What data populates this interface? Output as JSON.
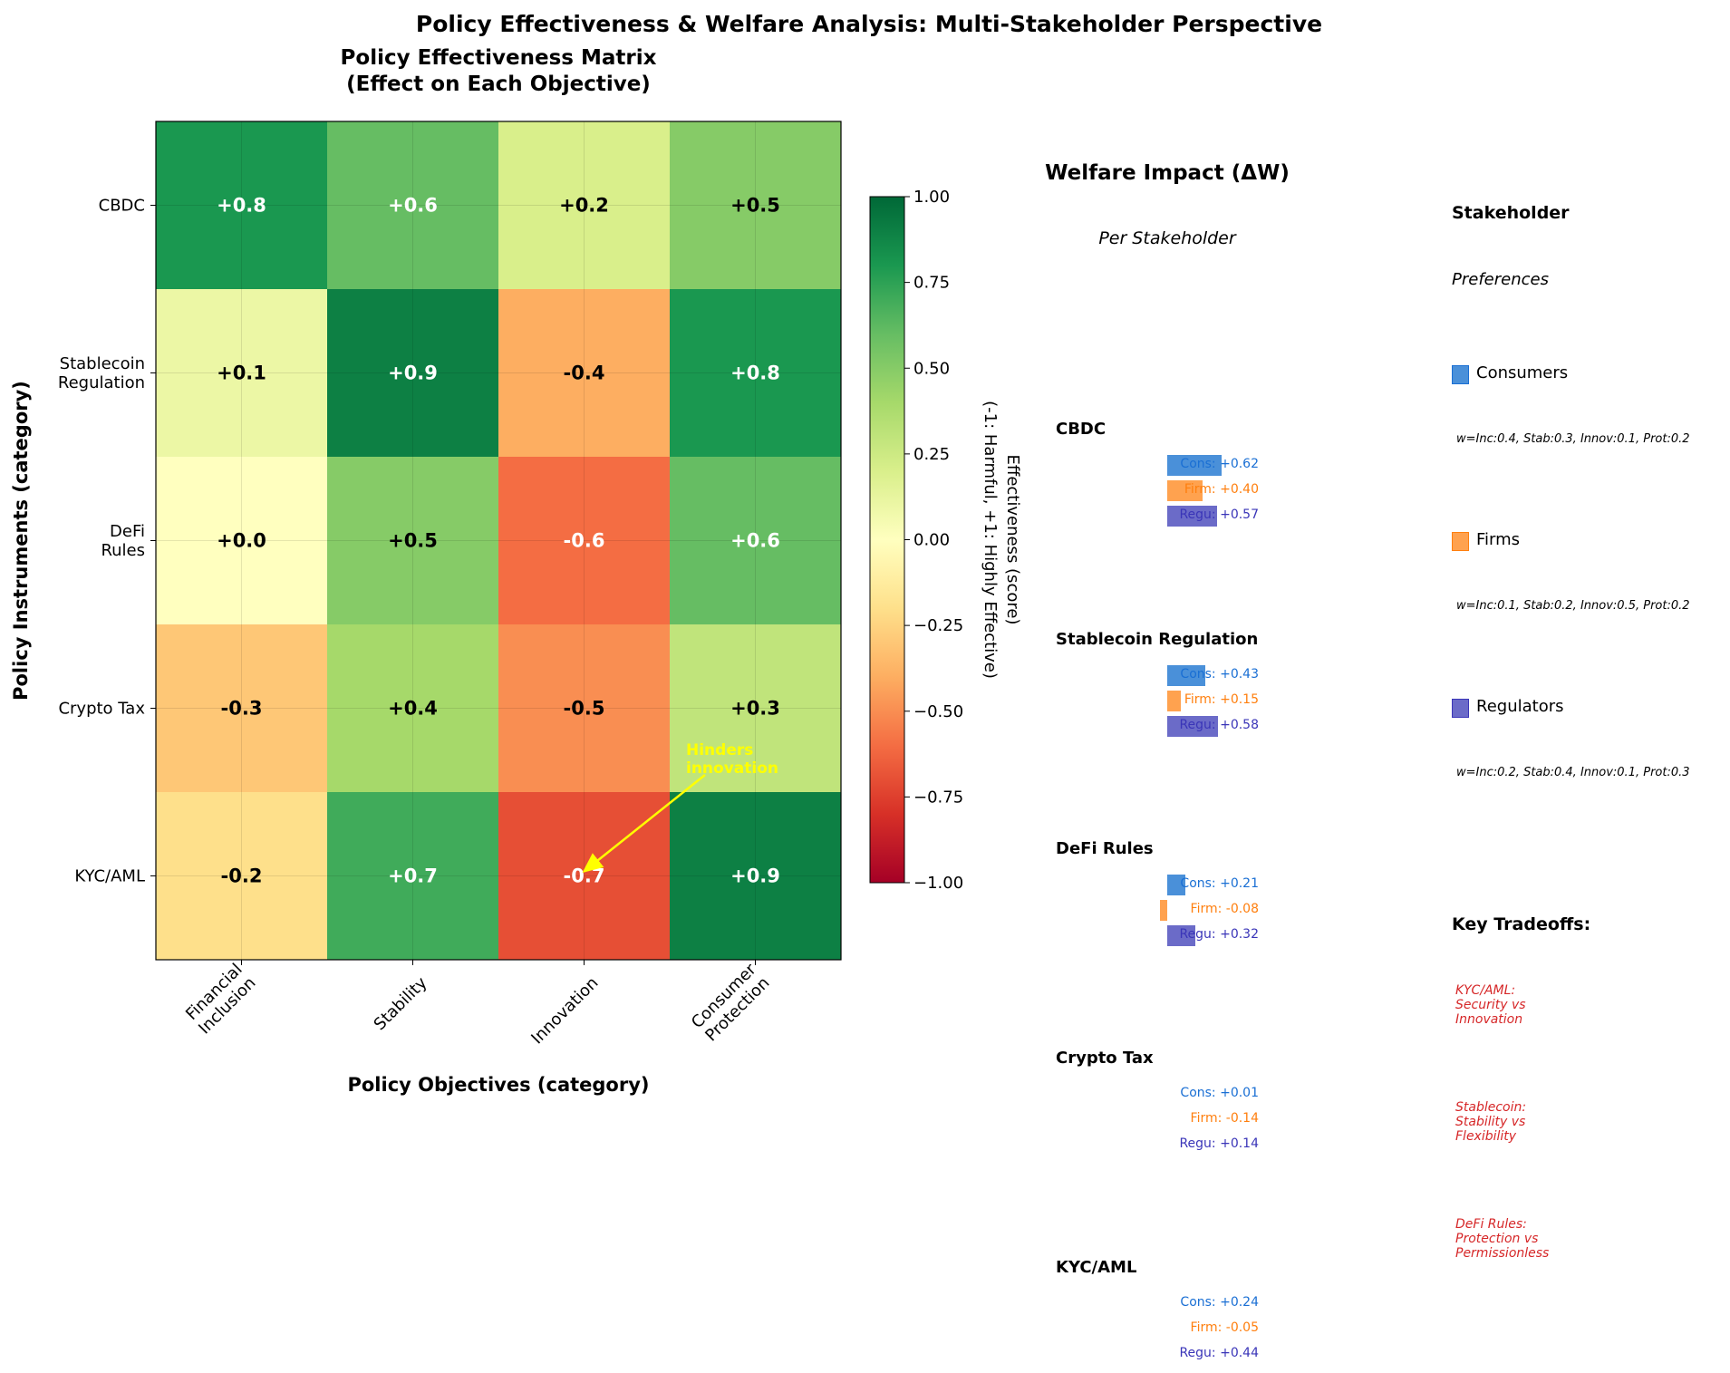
{
  "suptitle": "Policy Effectiveness & Welfare Analysis: Multi-Stakeholder Perspective",
  "chart_data": [
    {
      "type": "heatmap",
      "title": "Policy Effectiveness Matrix\n(Effect on Each Objective)",
      "title_lines": [
        "Policy Effectiveness Matrix",
        "(Effect on Each Objective)"
      ],
      "xlabel": "Policy Objectives (category)",
      "ylabel": "Policy Instruments (category)",
      "x_categories": [
        "Financial\nInclusion",
        "Stability",
        "Innovation",
        "Consumer\nProtection"
      ],
      "y_categories": [
        "CBDC",
        "Stablecoin\nRegulation",
        "DeFi\nRules",
        "Crypto Tax",
        "KYC/AML"
      ],
      "values": [
        [
          0.8,
          0.6,
          0.2,
          0.5
        ],
        [
          0.1,
          0.9,
          -0.4,
          0.8
        ],
        [
          0.0,
          0.5,
          -0.6,
          0.6
        ],
        [
          -0.3,
          0.4,
          -0.5,
          0.3
        ],
        [
          -0.2,
          0.7,
          -0.7,
          0.9
        ]
      ],
      "value_labels": [
        [
          "+0.8",
          "+0.6",
          "+0.2",
          "+0.5"
        ],
        [
          "+0.1",
          "+0.9",
          "-0.4",
          "+0.8"
        ],
        [
          "+0.0",
          "+0.5",
          "-0.6",
          "+0.6"
        ],
        [
          "-0.3",
          "+0.4",
          "-0.5",
          "+0.3"
        ],
        [
          "-0.2",
          "+0.7",
          "-0.7",
          "+0.9"
        ]
      ],
      "colormap": "RdYlGn",
      "vlim": [
        -1,
        1
      ],
      "colorbar": {
        "label_lines": [
          "Effectiveness (score)",
          "(-1: Harmful, +1: Highly Effective)"
        ],
        "ticks": [
          "1.00",
          "0.75",
          "0.50",
          "0.25",
          "0.00",
          "−0.25",
          "−0.50",
          "−0.75",
          "−1.00"
        ],
        "tick_values": [
          1,
          0.75,
          0.5,
          0.25,
          0,
          -0.25,
          -0.5,
          -0.75,
          -1
        ]
      },
      "grid": true,
      "annotation": {
        "text_lines": [
          "Hinders",
          "innovation"
        ],
        "target_row": 4,
        "target_col": 2,
        "color": "#ffff00"
      }
    },
    {
      "type": "bar",
      "title": "Welfare Impact (ΔW)",
      "subtitle": "Per Stakeholder",
      "stakeholder_colors": {
        "Cons": "#4a90d9",
        "Firm": "#ffa24f",
        "Regu": "#6b6bc8"
      },
      "text_colors": {
        "Cons": "#1a6fd4",
        "Firm": "#ff7f0e",
        "Regu": "#3a35b8"
      },
      "policies": [
        {
          "name": "CBDC",
          "bars_visible": true,
          "rows": [
            {
              "key": "Cons",
              "label": "Cons: +0.62",
              "value": 0.62
            },
            {
              "key": "Firm",
              "label": "Firm: +0.40",
              "value": 0.4
            },
            {
              "key": "Regu",
              "label": "Regu: +0.57",
              "value": 0.57
            }
          ]
        },
        {
          "name": "Stablecoin Regulation",
          "bars_visible": true,
          "rows": [
            {
              "key": "Cons",
              "label": "Cons: +0.43",
              "value": 0.43
            },
            {
              "key": "Firm",
              "label": "Firm: +0.15",
              "value": 0.15
            },
            {
              "key": "Regu",
              "label": "Regu: +0.58",
              "value": 0.58
            }
          ]
        },
        {
          "name": "DeFi Rules",
          "bars_visible": true,
          "rows": [
            {
              "key": "Cons",
              "label": "Cons: +0.21",
              "value": 0.21
            },
            {
              "key": "Firm",
              "label": "Firm: -0.08",
              "value": -0.08
            },
            {
              "key": "Regu",
              "label": "Regu: +0.32",
              "value": 0.32
            }
          ]
        },
        {
          "name": "Crypto Tax",
          "bars_visible": false,
          "rows": [
            {
              "key": "Cons",
              "label": "Cons: +0.01",
              "value": 0.01
            },
            {
              "key": "Firm",
              "label": "Firm: -0.14",
              "value": -0.14
            },
            {
              "key": "Regu",
              "label": "Regu: +0.14",
              "value": 0.14
            }
          ]
        },
        {
          "name": "KYC/AML",
          "bars_visible": false,
          "rows": [
            {
              "key": "Cons",
              "label": "Cons: +0.24",
              "value": 0.24
            },
            {
              "key": "Firm",
              "label": "Firm: -0.05",
              "value": -0.05
            },
            {
              "key": "Regu",
              "label": "Regu: +0.44",
              "value": 0.44
            }
          ]
        }
      ]
    }
  ],
  "preferences": {
    "title": "Stakeholder",
    "subtitle": "Preferences",
    "stakeholders": [
      {
        "name": "Consumers",
        "color": "#4a90d9",
        "edge": "#1a6fd4",
        "weights": "w=Inc:0.4, Stab:0.3, Innov:0.1, Prot:0.2"
      },
      {
        "name": "Firms",
        "color": "#ffa24f",
        "edge": "#ff7f0e",
        "weights": "w=Inc:0.1, Stab:0.2, Innov:0.5, Prot:0.2"
      },
      {
        "name": "Regulators",
        "color": "#6b6bc8",
        "edge": "#3a35b8",
        "weights": "w=Inc:0.2, Stab:0.4, Innov:0.1, Prot:0.3"
      }
    ],
    "tradeoffs_title": "Key Tradeoffs:",
    "tradeoffs": [
      [
        "KYC/AML:",
        "Security vs",
        "Innovation"
      ],
      [
        "Stablecoin:",
        "Stability vs",
        "Flexibility"
      ],
      [
        "DeFi Rules:",
        "Protection vs",
        "Permissionless"
      ]
    ],
    "tradeoff_color": "#d62728"
  }
}
